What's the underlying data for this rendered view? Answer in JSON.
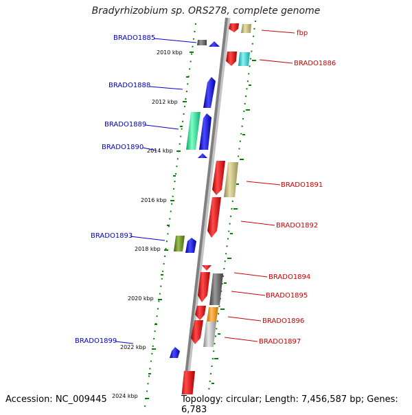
{
  "title": "Bradyrhizobium sp. ORS278, complete genome",
  "accession": "Accession: NC_009445",
  "topology": "Topology: circular; Length: 7,456,587 bp; Genes: 6,783",
  "colors": {
    "backbone": "#8a8a8a",
    "minus_label": "#0000cc",
    "plus_label": "#cc0000",
    "tick": "#008000",
    "red": "#ee1111",
    "blue": "#1010ee",
    "khaki": "#c8c078",
    "cyan": "#33dddd",
    "spring": "#22ee99",
    "olive": "#6b8e23",
    "darkgray": "#666666",
    "lightgray": "#b8b8b8",
    "orange": "#ff9900"
  },
  "scale_labels": [
    "2010 kbp",
    "2012 kbp",
    "2014 kbp",
    "2016 kbp",
    "2018 kbp",
    "2020 kbp",
    "2022 kbp",
    "2024 kbp"
  ],
  "minus_labels": [
    "BRADO1885",
    "BRADO1888",
    "BRADO1889",
    "BRADO1890",
    "BRADO1893",
    "BRADO1899"
  ],
  "plus_labels": [
    "fbp",
    "BRADO1886",
    "BRADO1891",
    "BRADO1892",
    "BRADO1894",
    "BRADO1895",
    "BRADO1896",
    "BRADO1897"
  ]
}
